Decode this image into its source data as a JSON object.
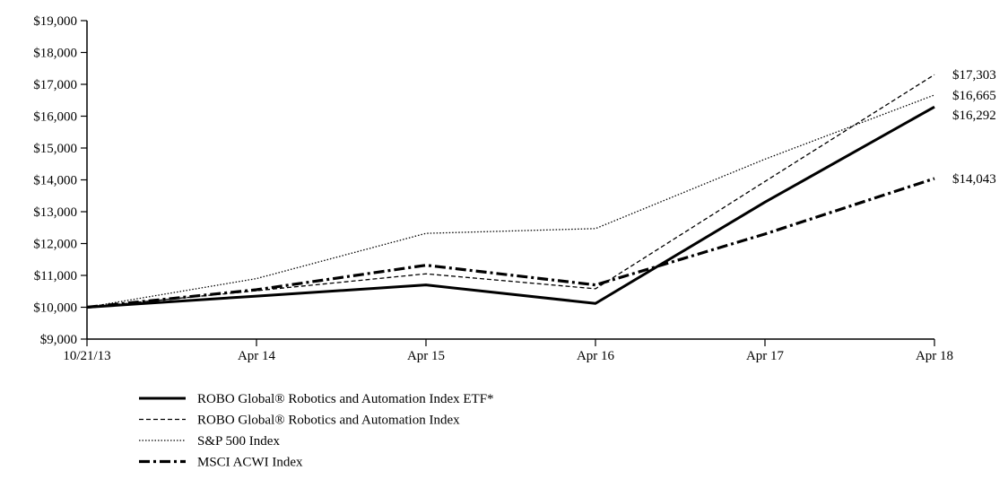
{
  "chart_data": {
    "type": "line",
    "title": "",
    "xlabel": "",
    "ylabel": "",
    "x": [
      "10/21/13",
      "Apr 14",
      "Apr 15",
      "Apr 16",
      "Apr 17",
      "Apr 18"
    ],
    "ylim": [
      9000,
      19000
    ],
    "y_ticks": [
      "$9,000",
      "$10,000",
      "$11,000",
      "$12,000",
      "$13,000",
      "$14,000",
      "$15,000",
      "$16,000",
      "$17,000",
      "$18,000",
      "$19,000"
    ],
    "grid": false,
    "legend_position": "bottom-left",
    "series": [
      {
        "name": "ROBO Global® Robotics and Automation Index ETF*",
        "style": "solid-thick",
        "values": [
          10000,
          10350,
          10700,
          10120,
          13300,
          16292
        ],
        "end_label": "$16,292"
      },
      {
        "name": "ROBO Global® Robotics and Automation Index",
        "style": "dashed",
        "values": [
          10000,
          10520,
          11050,
          10580,
          13950,
          17303
        ],
        "end_label": "$17,303"
      },
      {
        "name": "S&P 500 Index",
        "style": "dotted",
        "values": [
          10000,
          10900,
          12320,
          12470,
          14650,
          16665
        ],
        "end_label": "$16,665"
      },
      {
        "name": "MSCI  ACWI Index",
        "style": "dashdot-thick",
        "values": [
          10000,
          10550,
          11320,
          10700,
          12300,
          14043
        ],
        "end_label": "$14,043"
      }
    ]
  }
}
